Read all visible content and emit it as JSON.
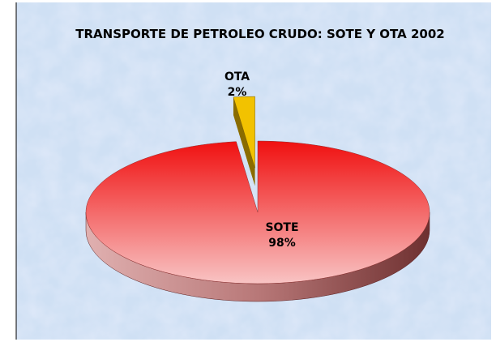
{
  "chart_data": {
    "type": "pie",
    "title": "TRANSPORTE DE PETROLEO CRUDO: SOTE Y OTA  2002",
    "categories": [
      "SOTE",
      "OTA"
    ],
    "values": [
      98,
      2
    ],
    "value_labels": [
      "98%",
      "2%"
    ],
    "colors": [
      "#f01c1c",
      "#f2c200"
    ]
  }
}
